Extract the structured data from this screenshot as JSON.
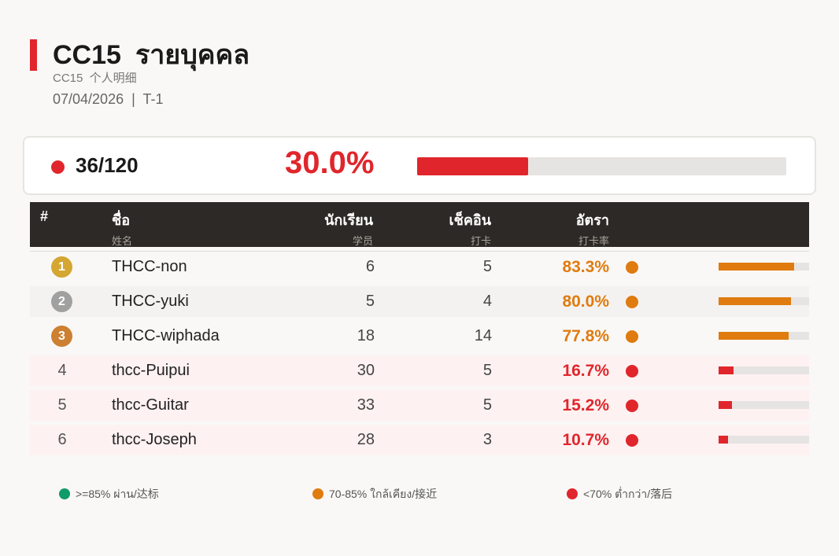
{
  "header": {
    "title_code": "CC15",
    "title_thai": "รายบุคคล",
    "subtitle": "CC15  个人明细",
    "meta": "07/04/2026  |  T-1"
  },
  "summary": {
    "count": "36/120",
    "percent": "30.0%",
    "progress_fraction": 0.3,
    "color": "#e0262c"
  },
  "columns": [
    {
      "main": "#",
      "sub": ""
    },
    {
      "main": "ชื่อ",
      "sub": "姓名"
    },
    {
      "main": "นักเรียน",
      "sub": "学员"
    },
    {
      "main": "เช็คอิน",
      "sub": "打卡"
    },
    {
      "main": "อัตรา",
      "sub": "打卡率"
    }
  ],
  "colors": {
    "green": "#0f9b6a",
    "orange": "#e07b0f",
    "red": "#e0262c",
    "gold": "#d4a632",
    "silver": "#a0a0a0",
    "bronze": "#cd7f32"
  },
  "rows": [
    {
      "rank": "1",
      "medal": "gold",
      "name": "THCC-non",
      "students": "6",
      "checkins": "5",
      "rate": "83.3%",
      "rate_value": 0.833,
      "status": "orange"
    },
    {
      "rank": "2",
      "medal": "silver",
      "name": "THCC-yuki",
      "students": "5",
      "checkins": "4",
      "rate": "80.0%",
      "rate_value": 0.8,
      "status": "orange"
    },
    {
      "rank": "3",
      "medal": "bronze",
      "name": "THCC-wiphada",
      "students": "18",
      "checkins": "14",
      "rate": "77.8%",
      "rate_value": 0.778,
      "status": "orange"
    },
    {
      "rank": "4",
      "medal": "",
      "name": "thcc-Puipui",
      "students": "30",
      "checkins": "5",
      "rate": "16.7%",
      "rate_value": 0.167,
      "status": "red"
    },
    {
      "rank": "5",
      "medal": "",
      "name": "thcc-Guitar",
      "students": "33",
      "checkins": "5",
      "rate": "15.2%",
      "rate_value": 0.152,
      "status": "red"
    },
    {
      "rank": "6",
      "medal": "",
      "name": "thcc-Joseph",
      "students": "28",
      "checkins": "3",
      "rate": "10.7%",
      "rate_value": 0.107,
      "status": "red"
    }
  ],
  "legend": [
    {
      "label": ">=85% ผ่าน/达标",
      "color": "green"
    },
    {
      "label": "70-85% ใกล้เคียง/接近",
      "color": "orange"
    },
    {
      "label": "<70% ต่ำกว่า/落后",
      "color": "red"
    }
  ]
}
